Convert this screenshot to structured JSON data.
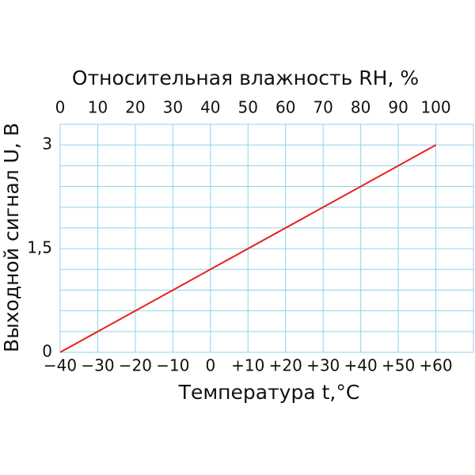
{
  "chart_data": {
    "type": "line",
    "title": "Относительная влажность RH, %",
    "xlabel": "Температура t,°C",
    "ylabel": "Выходной сигнал U, В",
    "x": [
      -40,
      60
    ],
    "series": [
      {
        "name": "U",
        "color": "#e8201c",
        "values": [
          0,
          3
        ]
      }
    ],
    "xlim": [
      -40,
      70
    ],
    "xticks": [
      {
        "value": -40,
        "label": "−40"
      },
      {
        "value": -30,
        "label": "−30"
      },
      {
        "value": -20,
        "label": "−20"
      },
      {
        "value": -10,
        "label": "−10"
      },
      0,
      {
        "value": 10,
        "label": "+10"
      },
      {
        "value": 20,
        "label": "+20"
      },
      {
        "value": 30,
        "label": "+30"
      },
      {
        "value": 40,
        "label": "+40"
      },
      {
        "value": 50,
        "label": "+50"
      },
      {
        "value": 60,
        "label": "+60"
      }
    ],
    "x2lim": [
      0,
      110
    ],
    "x2ticks": [
      0,
      10,
      20,
      30,
      40,
      50,
      60,
      70,
      80,
      90,
      100
    ],
    "ylim": [
      0,
      3.3
    ],
    "yticks": [
      0,
      {
        "value": 1.5,
        "label": "1,5"
      },
      3
    ],
    "yminor": [
      0.3,
      0.6,
      0.9,
      1.2,
      1.8,
      2.1,
      2.4,
      2.7,
      3.3
    ],
    "grid_color": "#92d2ea",
    "grid": true
  }
}
